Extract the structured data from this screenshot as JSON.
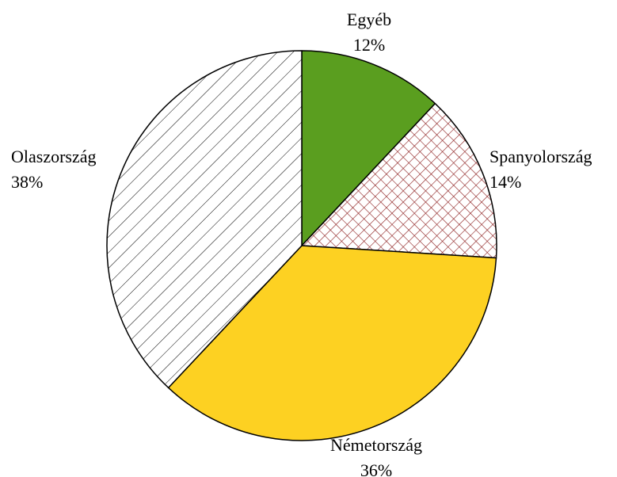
{
  "chart_data": {
    "type": "pie",
    "categories": [
      "Egyéb",
      "Spanyolország",
      "Németország",
      "Olaszország"
    ],
    "values": [
      12,
      14,
      36,
      38
    ],
    "value_labels": [
      "12%",
      "14%",
      "36%",
      "38%"
    ],
    "colors": [
      "#5a9e1f",
      "#8b1a1a",
      "#fdd122",
      "#000000"
    ],
    "patterns": [
      "solid",
      "crosshatch",
      "solid",
      "diagonal"
    ]
  }
}
